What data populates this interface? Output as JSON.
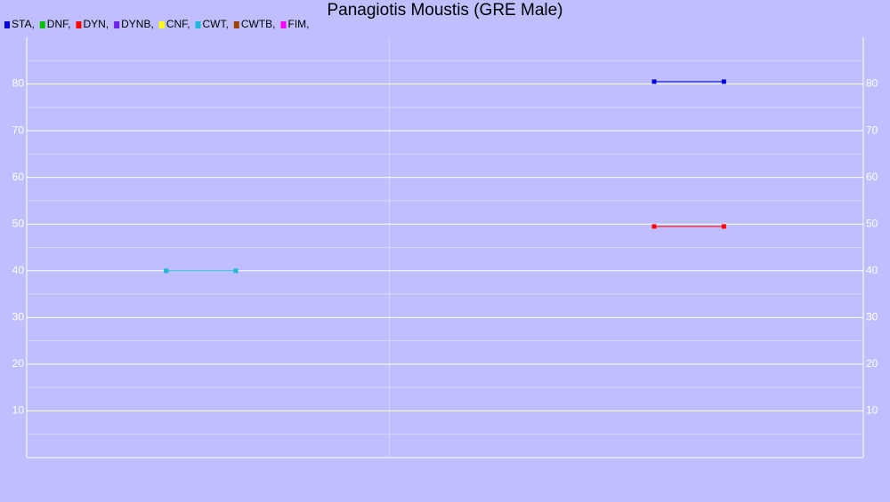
{
  "chart_data": {
    "type": "line",
    "title": "Panagiotis Moustis (GRE Male)",
    "series": [
      {
        "name": "STA,",
        "color": "#0000e0",
        "x": [
          9,
          10
        ],
        "values": [
          80.5,
          80.5
        ]
      },
      {
        "name": "DNF,",
        "color": "#00c000",
        "x": [],
        "values": []
      },
      {
        "name": "DYN,",
        "color": "#ff0000",
        "x": [
          9,
          10
        ],
        "values": [
          49.5,
          49.5
        ]
      },
      {
        "name": "DYNB,",
        "color": "#7020e8",
        "x": [],
        "values": []
      },
      {
        "name": "CNF,",
        "color": "#ffff00",
        "x": [],
        "values": []
      },
      {
        "name": "CWT,",
        "color": "#20b8d8",
        "x": [
          2,
          3
        ],
        "values": [
          40,
          40
        ]
      },
      {
        "name": "CWTB,",
        "color": "#a04000",
        "x": [],
        "values": []
      },
      {
        "name": "FIM,",
        "color": "#ff00ff",
        "x": [],
        "values": []
      }
    ],
    "xlim": [
      0,
      12
    ],
    "xgrid": [
      5.2
    ],
    "ylim": [
      0,
      90
    ],
    "yticks": [
      10,
      20,
      30,
      40,
      50,
      60,
      70,
      80
    ],
    "minor_yticks": [
      5,
      15,
      25,
      35,
      45,
      55,
      65,
      75,
      85
    ],
    "grid": true,
    "legend": "top-left"
  }
}
